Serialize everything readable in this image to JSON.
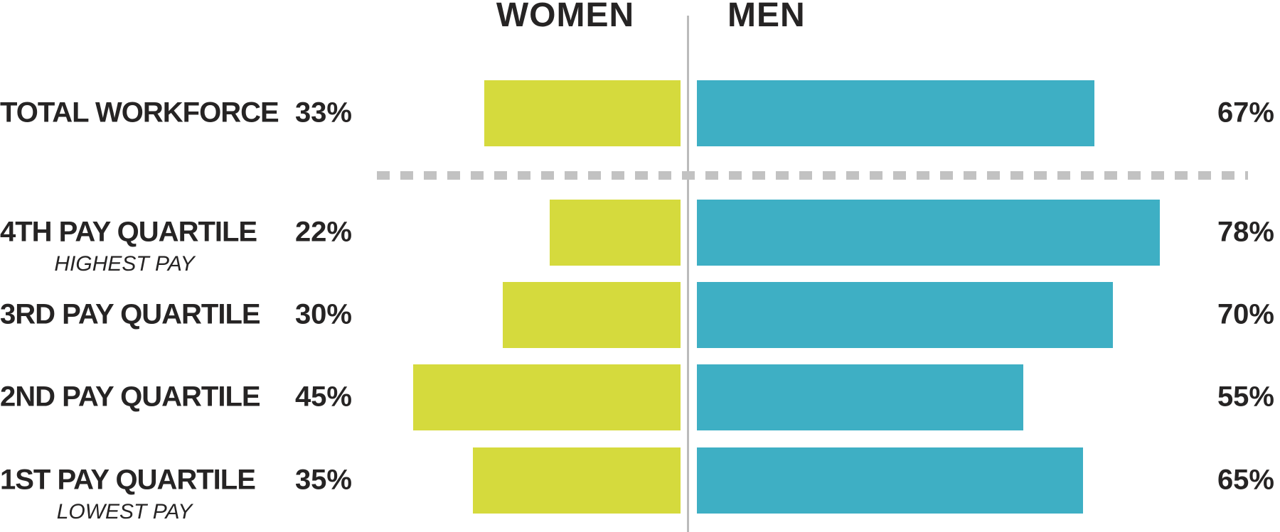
{
  "chart_data": {
    "type": "bar",
    "subtype": "diverging-horizontal-percentage",
    "title": "",
    "column_headers": {
      "left": "WOMEN",
      "right": "MEN"
    },
    "categories": [
      "TOTAL WORKFORCE",
      "4TH PAY QUARTILE",
      "3RD PAY QUARTILE",
      "2ND PAY QUARTILE",
      "1ST PAY QUARTILE"
    ],
    "category_subtitles": [
      "",
      "HIGHEST PAY",
      "",
      "",
      "LOWEST PAY"
    ],
    "series": [
      {
        "name": "WOMEN",
        "values": [
          33,
          22,
          30,
          45,
          35
        ],
        "color": "#d5da3d"
      },
      {
        "name": "MEN",
        "values": [
          67,
          78,
          70,
          55,
          65
        ],
        "color": "#3eafc4"
      }
    ],
    "value_format": "percent",
    "xlim": [
      0,
      100
    ],
    "grid": false,
    "legend_position": "column-headers-top",
    "separator_after_row": 0
  },
  "headers": {
    "women": "WOMEN",
    "men": "MEN"
  },
  "rows": [
    {
      "label": "TOTAL WORKFORCE",
      "sublabel": "",
      "women_value": 33,
      "men_value": 67,
      "women_label": "33%",
      "men_label": "67%"
    },
    {
      "label": "4TH PAY QUARTILE",
      "sublabel": "HIGHEST PAY",
      "women_value": 22,
      "men_value": 78,
      "women_label": "22%",
      "men_label": "78%"
    },
    {
      "label": "3RD PAY QUARTILE",
      "sublabel": "",
      "women_value": 30,
      "men_value": 70,
      "women_label": "30%",
      "men_label": "70%"
    },
    {
      "label": "2ND PAY QUARTILE",
      "sublabel": "",
      "women_value": 45,
      "men_value": 55,
      "women_label": "45%",
      "men_label": "55%"
    },
    {
      "label": "1ST PAY QUARTILE",
      "sublabel": "LOWEST PAY",
      "women_value": 35,
      "men_value": 65,
      "women_label": "35%",
      "men_label": "65%"
    }
  ],
  "colors": {
    "women_bar": "#d5da3d",
    "men_bar": "#3eafc4",
    "text": "#262424",
    "divider": "#bbbbbb",
    "dashed_line": "#c2c2c2",
    "background": "#ffffff"
  }
}
